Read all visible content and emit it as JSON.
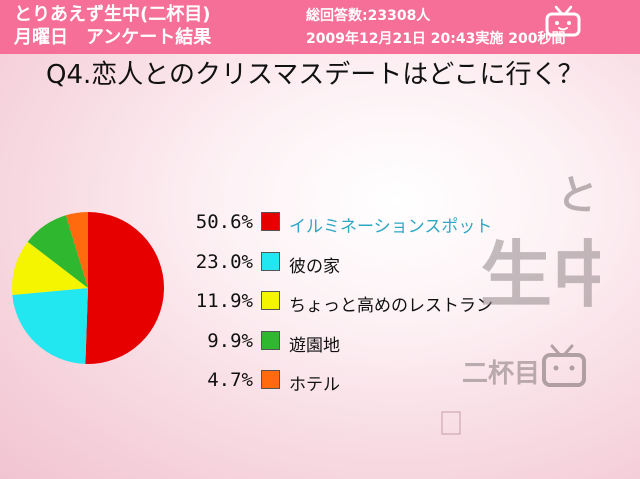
{
  "header": {
    "title_line1": "とりあえず生中(二杯目)",
    "title_line2": "月曜日　アンケート結果",
    "respondents": "総回答数:23308人",
    "datetime": "2009年12月21日 20:43実施 200秒間"
  },
  "question": {
    "text": "Q4.恋人とのクリスマスデートはどこに行く？"
  },
  "colors": {
    "header_bg": "#f56f98",
    "highlight_label": "#2fa8c4"
  },
  "chart_data": {
    "type": "pie",
    "categories": [
      "イルミネーションスポット",
      "彼の家",
      "ちょっと高めのレストラン",
      "遊園地",
      "ホテル"
    ],
    "percent_labels": [
      "50.6%",
      "23.0%",
      "11.9%",
      "9.9%",
      "4.7%"
    ],
    "values": [
      50.6,
      23.0,
      11.9,
      9.9,
      4.7
    ],
    "colors": [
      "#e60000",
      "#22e6f0",
      "#f5f500",
      "#2fb82f",
      "#ff6a0f"
    ],
    "highlighted_index": 0
  },
  "watermark": {
    "icon": "tv-mascot-icon",
    "line1": "とりあえず",
    "line2": "生中",
    "line3": "二杯目"
  }
}
